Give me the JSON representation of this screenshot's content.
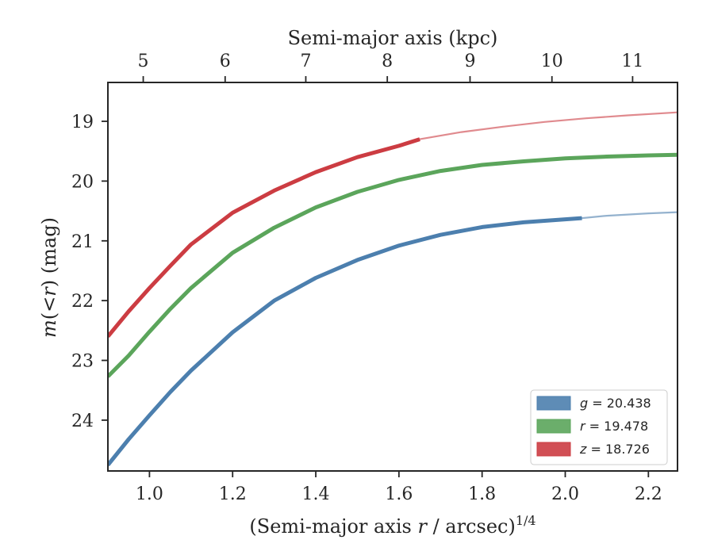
{
  "chart_data": {
    "type": "line",
    "xlabel": "(Semi-major axis r / arcsec)^1/4",
    "xlabel_parts": {
      "pre": "(Semi-major axis ",
      "var": "r",
      "mid": " / arcsec)",
      "sup": "1/4"
    },
    "ylabel": "m(<r) (mag)",
    "ylabel_parts": {
      "var": "m",
      "rest_open": "(",
      "lt": "<",
      "var2": "r",
      "rest_close": ")",
      "unit": " (mag)"
    },
    "top_xlabel": "Semi-major axis (kpc)",
    "xlim": [
      0.9,
      2.27
    ],
    "ylim": [
      24.85,
      18.35
    ],
    "y_inverted": true,
    "xticks": [
      1.0,
      1.2,
      1.4,
      1.6,
      1.8,
      2.0,
      2.2
    ],
    "xtick_labels": [
      "1.0",
      "1.2",
      "1.4",
      "1.6",
      "1.8",
      "2.0",
      "2.2"
    ],
    "yticks": [
      19,
      20,
      21,
      22,
      23,
      24
    ],
    "ytick_labels": [
      "19",
      "20",
      "21",
      "22",
      "23",
      "24"
    ],
    "top_xticks_kpc": [
      5,
      6,
      7,
      8,
      9,
      10,
      11
    ],
    "top_xtick_labels": [
      "5",
      "6",
      "7",
      "8",
      "9",
      "10",
      "11"
    ],
    "top_xticks_at_bottom_x": [
      0.985,
      1.182,
      1.376,
      1.572,
      1.771,
      1.968,
      2.162
    ],
    "grid": false,
    "legend_placement": "lower-right",
    "series": [
      {
        "name": "g = 20.438",
        "legend": {
          "var": "g",
          "value": " = 20.438"
        },
        "color": "#4C7FAE",
        "measured": [
          [
            0.9,
            24.75
          ],
          [
            0.95,
            24.32
          ],
          [
            1.0,
            23.92
          ],
          [
            1.05,
            23.53
          ],
          [
            1.1,
            23.17
          ],
          [
            1.2,
            22.53
          ],
          [
            1.3,
            22.0
          ],
          [
            1.4,
            21.62
          ],
          [
            1.5,
            21.32
          ],
          [
            1.6,
            21.08
          ],
          [
            1.7,
            20.9
          ],
          [
            1.8,
            20.77
          ],
          [
            1.9,
            20.69
          ],
          [
            2.04,
            20.62
          ]
        ],
        "extrapolated": [
          [
            2.04,
            20.62
          ],
          [
            2.1,
            20.58
          ],
          [
            2.2,
            20.54
          ],
          [
            2.27,
            20.52
          ]
        ]
      },
      {
        "name": "r = 19.478",
        "legend": {
          "var": "r",
          "value": " = 19.478"
        },
        "color": "#5BA55B",
        "measured": [
          [
            0.9,
            23.27
          ],
          [
            0.95,
            22.92
          ],
          [
            1.0,
            22.52
          ],
          [
            1.05,
            22.14
          ],
          [
            1.1,
            21.79
          ],
          [
            1.2,
            21.2
          ],
          [
            1.3,
            20.78
          ],
          [
            1.4,
            20.44
          ],
          [
            1.5,
            20.18
          ],
          [
            1.6,
            19.98
          ],
          [
            1.7,
            19.83
          ],
          [
            1.8,
            19.73
          ],
          [
            1.9,
            19.67
          ],
          [
            2.0,
            19.62
          ],
          [
            2.1,
            19.59
          ],
          [
            2.2,
            19.57
          ],
          [
            2.27,
            19.56
          ]
        ],
        "extrapolated": []
      },
      {
        "name": "z = 18.726",
        "legend": {
          "var": "z",
          "value": " = 18.726"
        },
        "color": "#CC3C42",
        "measured": [
          [
            0.9,
            22.6
          ],
          [
            0.95,
            22.18
          ],
          [
            1.0,
            21.79
          ],
          [
            1.05,
            21.42
          ],
          [
            1.1,
            21.06
          ],
          [
            1.2,
            20.53
          ],
          [
            1.3,
            20.16
          ],
          [
            1.4,
            19.85
          ],
          [
            1.5,
            19.6
          ],
          [
            1.6,
            19.41
          ],
          [
            1.65,
            19.3
          ]
        ],
        "extrapolated": [
          [
            1.65,
            19.3
          ],
          [
            1.75,
            19.18
          ],
          [
            1.85,
            19.09
          ],
          [
            1.95,
            19.01
          ],
          [
            2.05,
            18.95
          ],
          [
            2.15,
            18.9
          ],
          [
            2.27,
            18.85
          ]
        ]
      }
    ]
  }
}
